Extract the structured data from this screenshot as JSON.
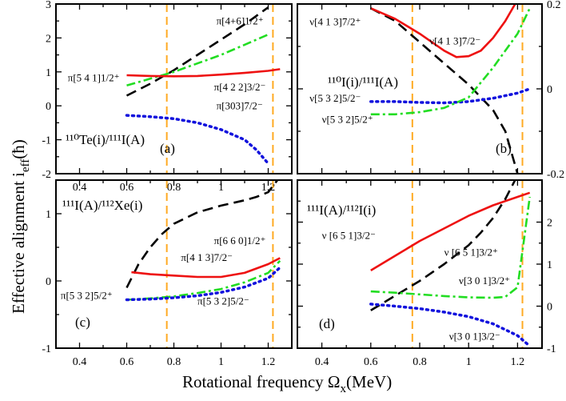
{
  "figure": {
    "xlabel_main": "Rotational frequency Ω",
    "xlabel_sub": "x",
    "xlabel_unit": "(MeV)",
    "ylabel_main": "Effective alignment i",
    "ylabel_sub": "eff",
    "ylabel_unit": "(ħ)"
  },
  "colors": {
    "black": "#000000",
    "red": "#ee1111",
    "green": "#22dd22",
    "blue": "#1111dd",
    "orange": "#ffaa22"
  },
  "chart_data": [
    {
      "type": "line",
      "panel": "a",
      "panel_label": "(a)",
      "nucleus_label": "¹¹⁰Te(i)/¹¹¹I(A)",
      "xlim": [
        0.3,
        1.3
      ],
      "ylim": [
        -2,
        3
      ],
      "xticks": [
        0.4,
        0.6,
        0.8,
        1.0,
        1.2
      ],
      "xtick_labels": [
        "0.4",
        "0.6",
        "0.8",
        "1",
        "1.2"
      ],
      "yticks": [
        -2,
        -1,
        0,
        1,
        2,
        3
      ],
      "ytick_labels": [
        "-2",
        "-1",
        "0",
        "1",
        "2",
        "3"
      ],
      "vlines": [
        0.77,
        1.22
      ],
      "series": [
        {
          "name": "π[4+6]1/2⁺",
          "color": "black",
          "style": "dash",
          "x": [
            0.6,
            0.7,
            0.8,
            0.9,
            1.0,
            1.1,
            1.2
          ],
          "y": [
            0.3,
            0.65,
            1.05,
            1.5,
            1.95,
            2.4,
            2.9
          ]
        },
        {
          "name": "π[5 4 1]1/2⁺",
          "color": "green",
          "style": "dashdot",
          "x": [
            0.6,
            0.7,
            0.8,
            0.9,
            1.0,
            1.1,
            1.2
          ],
          "y": [
            0.6,
            0.8,
            1.0,
            1.25,
            1.5,
            1.8,
            2.1
          ]
        },
        {
          "name": "π[4 2 2]3/2⁻",
          "color": "red",
          "style": "solid",
          "x": [
            0.6,
            0.7,
            0.8,
            0.9,
            1.0,
            1.1,
            1.2,
            1.25
          ],
          "y": [
            0.9,
            0.88,
            0.87,
            0.88,
            0.92,
            0.97,
            1.03,
            1.08
          ]
        },
        {
          "name": "π[303]7/2⁻",
          "color": "blue",
          "style": "dot",
          "x": [
            0.6,
            0.7,
            0.8,
            0.9,
            1.0,
            1.1,
            1.15,
            1.2
          ],
          "y": [
            -0.28,
            -0.32,
            -0.38,
            -0.5,
            -0.7,
            -1.0,
            -1.3,
            -1.7
          ]
        }
      ],
      "annotations": [
        {
          "text": "π[4+6]1/2⁺",
          "x": 0.98,
          "y": 2.4
        },
        {
          "text": "π[5 4 1]1/2⁺",
          "x": 0.35,
          "y": 0.72
        },
        {
          "text": "π[4 2 2]3/2⁻",
          "x": 0.97,
          "y": 0.45
        },
        {
          "text": "π[303]7/2⁻",
          "x": 0.98,
          "y": -0.1
        }
      ]
    },
    {
      "type": "line",
      "panel": "b",
      "panel_label": "(b)",
      "nucleus_label": "¹¹⁰I(i)/¹¹¹I(A)",
      "xlim": [
        0.3,
        1.3
      ],
      "ylim": [
        -0.2,
        0.2
      ],
      "yaxis_side": "right",
      "yticks": [
        -0.2,
        0,
        0.2
      ],
      "ytick_labels": [
        "-0.2",
        "0",
        "0.2"
      ],
      "vlines": [
        0.77,
        1.22
      ],
      "series": [
        {
          "name": "ν[4 1 3]7/2⁺",
          "color": "black",
          "style": "dash",
          "x": [
            0.6,
            0.7,
            0.8,
            0.9,
            1.0,
            1.05,
            1.1,
            1.15,
            1.2
          ],
          "y": [
            0.19,
            0.16,
            0.11,
            0.06,
            0.01,
            -0.02,
            -0.05,
            -0.1,
            -0.2
          ]
        },
        {
          "name": "ν[4 1 3]7/2⁻",
          "color": "red",
          "style": "solid",
          "x": [
            0.6,
            0.7,
            0.8,
            0.9,
            0.95,
            1.0,
            1.05,
            1.1,
            1.15,
            1.2
          ],
          "y": [
            0.19,
            0.165,
            0.13,
            0.09,
            0.075,
            0.077,
            0.09,
            0.12,
            0.16,
            0.21
          ]
        },
        {
          "name": "ν[5 3 2]5/2⁻",
          "color": "blue",
          "style": "dot",
          "x": [
            0.6,
            0.7,
            0.8,
            0.9,
            1.0,
            1.1,
            1.2,
            1.25
          ],
          "y": [
            -0.03,
            -0.03,
            -0.032,
            -0.033,
            -0.03,
            -0.022,
            -0.01,
            0.0
          ]
        },
        {
          "name": "ν[5 3 2]5/2⁺",
          "color": "green",
          "style": "dashdot",
          "x": [
            0.6,
            0.7,
            0.8,
            0.9,
            1.0,
            1.1,
            1.2,
            1.25
          ],
          "y": [
            -0.06,
            -0.06,
            -0.055,
            -0.045,
            -0.02,
            0.05,
            0.13,
            0.19
          ]
        }
      ],
      "annotations": [
        {
          "text": "ν[4 1 3]7/2⁺",
          "x": 0.35,
          "y": 0.15
        },
        {
          "text": "ν[4 1 3]7/2⁻",
          "x": 0.84,
          "y": 0.105
        },
        {
          "text": "ν[5 3 2]5/2⁻",
          "x": 0.35,
          "y": -0.03
        },
        {
          "text": "ν[5 3 2]5/2⁺",
          "x": 0.4,
          "y": -0.08
        }
      ]
    },
    {
      "type": "line",
      "panel": "c",
      "panel_label": "(c)",
      "nucleus_label": "¹¹¹I(A)/¹¹²Xe(i)",
      "xlim": [
        0.3,
        1.3
      ],
      "ylim": [
        -1,
        1.5
      ],
      "xticks": [
        0.4,
        0.6,
        0.8,
        1.0,
        1.2
      ],
      "xtick_labels": [
        "0.4",
        "0.6",
        "0.8",
        "1",
        "1.2"
      ],
      "yticks": [
        -1,
        0,
        1
      ],
      "ytick_labels": [
        "-1",
        "0",
        "1"
      ],
      "vlines": [
        0.77,
        1.22
      ],
      "series": [
        {
          "name": "π[6 6 0]1/2⁺",
          "color": "black",
          "style": "dash",
          "x": [
            0.6,
            0.65,
            0.7,
            0.75,
            0.8,
            0.9,
            1.0,
            1.1,
            1.15,
            1.2,
            1.25
          ],
          "y": [
            -0.1,
            0.25,
            0.5,
            0.7,
            0.85,
            1.02,
            1.12,
            1.2,
            1.25,
            1.32,
            1.55
          ]
        },
        {
          "name": "π[4 1 3]7/2⁻",
          "color": "red",
          "style": "solid",
          "x": [
            0.62,
            0.7,
            0.8,
            0.9,
            1.0,
            1.1,
            1.2,
            1.25
          ],
          "y": [
            0.13,
            0.1,
            0.08,
            0.06,
            0.06,
            0.12,
            0.25,
            0.34
          ]
        },
        {
          "name": "π[5 3 2]5/2⁺",
          "color": "green",
          "style": "dashdot",
          "x": [
            0.6,
            0.7,
            0.8,
            0.9,
            1.0,
            1.1,
            1.2,
            1.25
          ],
          "y": [
            -0.28,
            -0.26,
            -0.23,
            -0.18,
            -0.12,
            -0.02,
            0.12,
            0.3
          ]
        },
        {
          "name": "π[5 3 2]5/2⁻",
          "color": "blue",
          "style": "dot",
          "x": [
            0.6,
            0.7,
            0.8,
            0.9,
            1.0,
            1.1,
            1.2,
            1.25
          ],
          "y": [
            -0.28,
            -0.27,
            -0.25,
            -0.22,
            -0.17,
            -0.09,
            0.04,
            0.2
          ]
        }
      ],
      "annotations": [
        {
          "text": "π[6 6 0]1/2⁺",
          "x": 0.97,
          "y": 0.55
        },
        {
          "text": "π[4 1 3]7/2⁻",
          "x": 0.83,
          "y": 0.3
        },
        {
          "text": "π[5 3 2]5/2⁺",
          "x": 0.32,
          "y": -0.27
        },
        {
          "text": "π[5 3 2]5/2⁻",
          "x": 0.9,
          "y": -0.35
        }
      ]
    },
    {
      "type": "line",
      "panel": "d",
      "panel_label": "(d)",
      "nucleus_label": "¹¹¹I(A)/¹¹²I(i)",
      "xlim": [
        0.3,
        1.3
      ],
      "ylim": [
        -1,
        3
      ],
      "yaxis_side": "right",
      "xticks": [
        0.4,
        0.6,
        0.8,
        1.0,
        1.2
      ],
      "xtick_labels": [
        "0.4",
        "0.6",
        "0.8",
        "1",
        "1.2"
      ],
      "yticks": [
        -1,
        0,
        1,
        2
      ],
      "ytick_labels": [
        "-1",
        "0",
        "1",
        "2"
      ],
      "vlines": [
        0.77,
        1.22
      ],
      "series": [
        {
          "name": "ν[6 5 1]3/2⁻",
          "color": "red",
          "style": "solid",
          "x": [
            0.6,
            0.7,
            0.8,
            0.9,
            1.0,
            1.1,
            1.2,
            1.25
          ],
          "y": [
            0.85,
            1.2,
            1.55,
            1.85,
            2.15,
            2.4,
            2.6,
            2.7
          ]
        },
        {
          "name": "ν[6 5 1]3/2⁺",
          "color": "black",
          "style": "dash",
          "x": [
            0.6,
            0.7,
            0.8,
            0.9,
            1.0,
            1.05,
            1.1,
            1.15,
            1.19
          ],
          "y": [
            -0.1,
            0.25,
            0.6,
            1.0,
            1.45,
            1.75,
            2.1,
            2.55,
            3.0
          ]
        },
        {
          "name": "ν[3 0 1]3/2⁺",
          "color": "green",
          "style": "dashdot",
          "x": [
            0.6,
            0.7,
            0.8,
            0.9,
            1.0,
            1.1,
            1.15,
            1.2,
            1.25
          ],
          "y": [
            0.35,
            0.32,
            0.28,
            0.24,
            0.21,
            0.2,
            0.22,
            0.45,
            2.6
          ]
        },
        {
          "name": "ν[3 0 1]3/2⁻",
          "color": "blue",
          "style": "dot",
          "x": [
            0.6,
            0.7,
            0.8,
            0.9,
            1.0,
            1.1,
            1.2,
            1.25
          ],
          "y": [
            0.05,
            0.0,
            -0.06,
            -0.14,
            -0.25,
            -0.42,
            -0.7,
            -0.95
          ]
        }
      ],
      "annotations": [
        {
          "text": "ν [6 5 1]3/2⁻",
          "x": 0.4,
          "y": 1.6
        },
        {
          "text": "ν [6 5 1]3/2⁺",
          "x": 0.9,
          "y": 1.2
        },
        {
          "text": "ν[3 0 1]3/2⁺",
          "x": 0.96,
          "y": 0.52
        },
        {
          "text": "ν[3 0 1]3/2⁻",
          "x": 0.92,
          "y": -0.8
        }
      ]
    }
  ]
}
